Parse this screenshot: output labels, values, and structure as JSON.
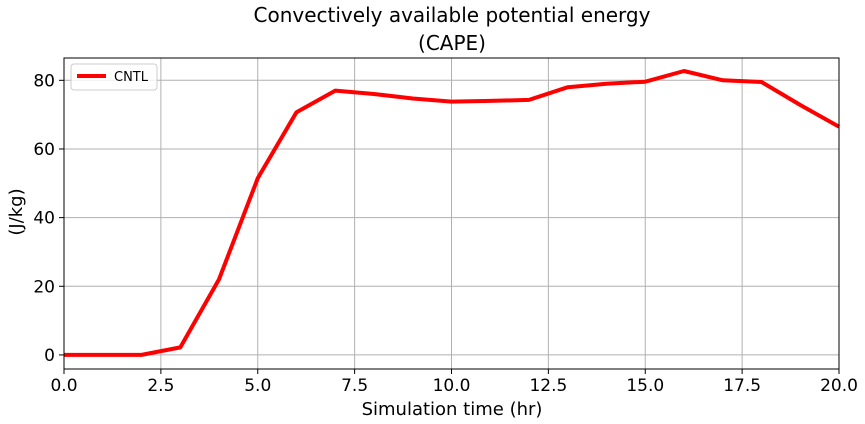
{
  "chart_data": {
    "type": "line",
    "title": "Convectively available potential energy",
    "subtitle": "(CAPE)",
    "xlabel": "Simulation time (hr)",
    "ylabel": "(J/kg)",
    "xlim": [
      0,
      20
    ],
    "ylim": [
      -4.1,
      86.5
    ],
    "xticks": [
      0,
      2.5,
      5,
      7.5,
      10,
      12.5,
      15,
      17.5,
      20
    ],
    "xtick_labels": [
      "0.0",
      "2.5",
      "5.0",
      "7.5",
      "10.0",
      "12.5",
      "15.0",
      "17.5",
      "20.0"
    ],
    "yticks": [
      0,
      20,
      40,
      60,
      80
    ],
    "ytick_labels": [
      "0",
      "20",
      "40",
      "60",
      "80"
    ],
    "grid": true,
    "legend_position": "top-left",
    "series": [
      {
        "name": "CNTL",
        "color": "#ff0000",
        "x": [
          0,
          1,
          2,
          3,
          4,
          5,
          6,
          7,
          8,
          9,
          10,
          11,
          12,
          13,
          14,
          15,
          16,
          17,
          18,
          19,
          20
        ],
        "y": [
          0,
          0,
          0,
          2.2,
          22,
          51.5,
          70.7,
          77,
          76,
          74.7,
          73.8,
          74,
          74.3,
          78,
          79,
          79.6,
          82.7,
          80,
          79.5,
          72.8,
          66.5
        ]
      }
    ]
  }
}
